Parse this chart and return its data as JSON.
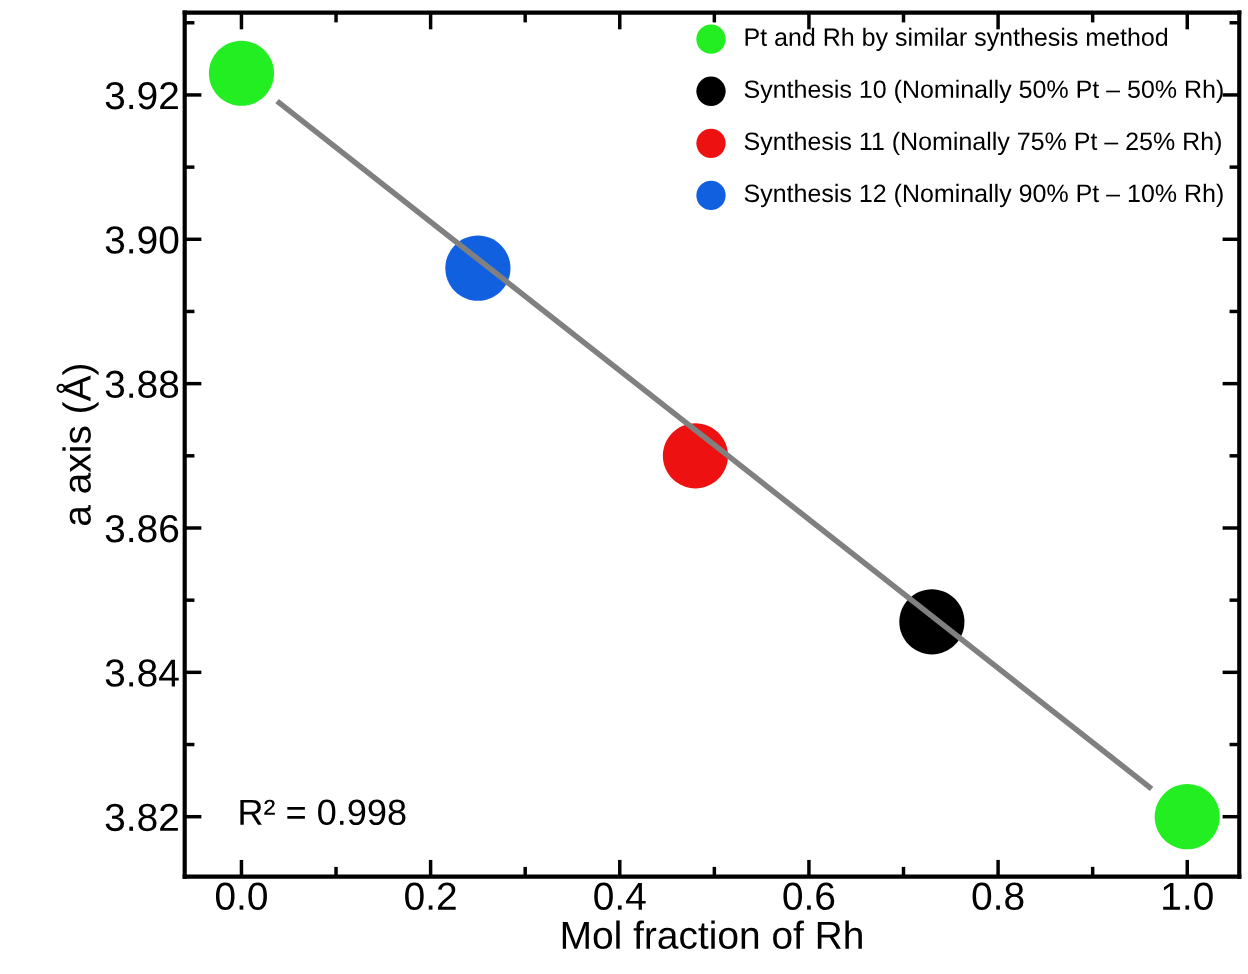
{
  "chart_data": {
    "type": "scatter",
    "xlabel": "Mol fraction of Rh",
    "ylabel": "a axis (Å)",
    "series": [
      {
        "type": "line",
        "color": "#808080",
        "marker": "none",
        "x": [
          0.04,
          0.96
        ],
        "values": [
          3.9189,
          3.8241
        ]
      },
      {
        "name": "Pt and Rh by similar synthesis method",
        "color": "#22ee22",
        "x": [
          0,
          1
        ],
        "values": [
          3.923,
          3.82
        ]
      },
      {
        "name": "Synthesis 10 (Nominally 50% Pt – 50% Rh)",
        "color": "#000000",
        "x": [
          0.73
        ],
        "values": [
          3.847
        ]
      },
      {
        "name": "Synthesis 11 (Nominally 75% Pt – 25% Rh)",
        "color": "#ee1111",
        "x": [
          0.48
        ],
        "values": [
          3.87
        ]
      },
      {
        "name": "Synthesis 12 (Nominally 90% Pt – 10% Rh)",
        "color": "#1060e0",
        "x": [
          0.25
        ],
        "values": [
          3.896
        ]
      }
    ],
    "xlim": [
      -0.06,
      1.055
    ],
    "ylim": [
      3.8117,
      3.9314
    ],
    "xticks": [
      {
        "value": 0,
        "label": "0.0"
      },
      0.2,
      0.4,
      0.6,
      0.8,
      {
        "value": 1,
        "label": "1.0"
      }
    ],
    "yticks": [
      3.82,
      3.84,
      3.86,
      3.88,
      {
        "value": 3.9,
        "label": "3.90"
      },
      3.92
    ],
    "annotations": [
      "R² = 0.998"
    ],
    "legend": "top right",
    "grid": false,
    "marker": "circle"
  }
}
